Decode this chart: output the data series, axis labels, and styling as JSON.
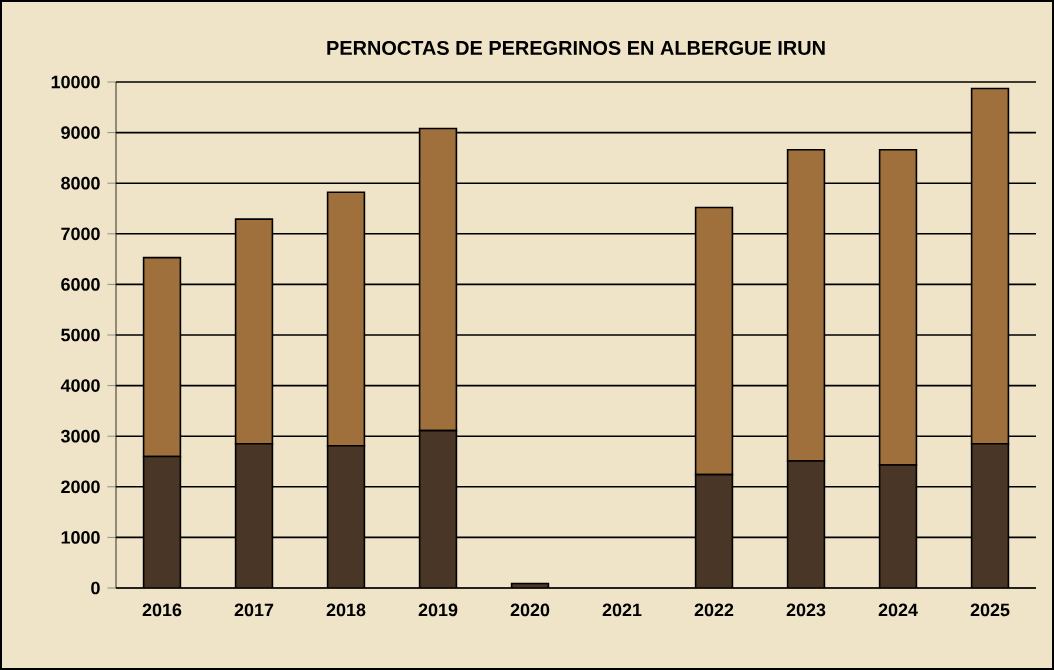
{
  "chart_data": {
    "type": "bar",
    "title": "PERNOCTAS DE PEREGRINOS EN ALBERGUE IRUN",
    "stacked": true,
    "categories": [
      "2016",
      "2017",
      "2018",
      "2019",
      "2020",
      "2021",
      "2022",
      "2023",
      "2024",
      "2025"
    ],
    "series": [
      {
        "color": "#4a3626",
        "values": [
          2600,
          2850,
          2810,
          3110,
          90,
          null,
          2240,
          2510,
          2430,
          2850
        ]
      },
      {
        "color": "#a0703c",
        "values": [
          3930,
          4440,
          5010,
          5970,
          null,
          null,
          5280,
          6150,
          6230,
          7020
        ]
      }
    ],
    "ylim": [
      0,
      10000
    ],
    "yticks": [
      0,
      1000,
      2000,
      3000,
      4000,
      5000,
      6000,
      7000,
      8000,
      9000,
      10000
    ],
    "grid": "y"
  }
}
